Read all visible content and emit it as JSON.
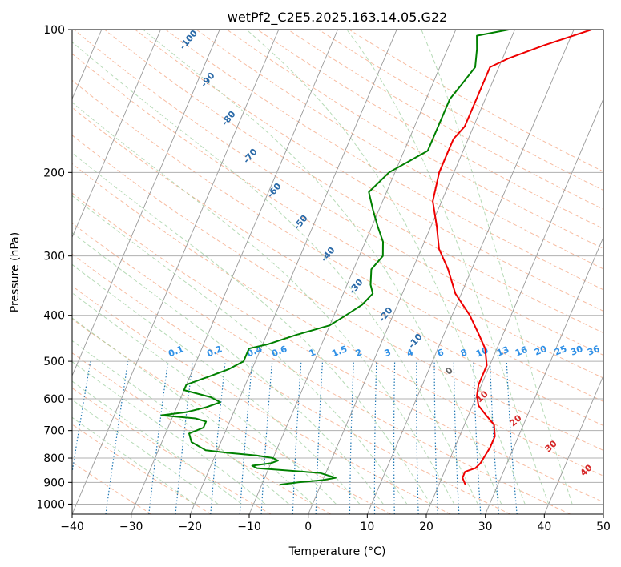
{
  "chart_data": {
    "type": "line",
    "title": "wetPf2_C2E5.2025.163.14.05.G22",
    "xlabel": "Temperature (°C)",
    "ylabel": "Pressure (hPa)",
    "xlim": [
      -40,
      50
    ],
    "ylim": [
      1050,
      100
    ],
    "y_scale": "log",
    "grid": true,
    "x_ticks": [
      -40,
      -30,
      -20,
      -10,
      0,
      10,
      20,
      30,
      40,
      50
    ],
    "y_ticks": [
      100,
      200,
      300,
      400,
      500,
      600,
      700,
      800,
      900,
      1000
    ],
    "dry_adiabat_labels": [
      "-100",
      "-90",
      "-80",
      "-70",
      "-60",
      "-50",
      "-40",
      "-30",
      "-20",
      "-10"
    ],
    "mixing_ratio_labels": [
      "0.1",
      "0.2",
      "0.4",
      "0.6",
      "1",
      "1.5",
      "2",
      "3",
      "4",
      "6",
      "8",
      "10",
      "13",
      "16",
      "20",
      "25",
      "30",
      "36"
    ],
    "moist_adiabat_labels": [
      "0",
      "10",
      "20",
      "30",
      "40"
    ],
    "colors": {
      "temperature": "#ee0000",
      "dewpoint": "#008000",
      "isotherm": "#999999",
      "dry_adiabat": "#f4a582",
      "moist_adiabat": "#99cc99",
      "mixing_ratio": "#1f77b4"
    },
    "series": [
      {
        "name": "Temperature",
        "pressure": [
          910,
          880,
          855,
          840,
          820,
          760,
          720,
          680,
          650,
          620,
          590,
          560,
          530,
          510,
          470,
          440,
          400,
          360,
          320,
          290,
          260,
          230,
          200,
          180,
          170,
          160,
          140,
          120,
          115,
          108,
          100
        ],
        "values": [
          24.5,
          23.5,
          23.5,
          25,
          25.5,
          26,
          26,
          25,
          23,
          21,
          20,
          19.5,
          19.5,
          19.5,
          18,
          16,
          13,
          9,
          6,
          3,
          1,
          -1.5,
          -2.5,
          -2.5,
          -2.5,
          -1.5,
          -1.5,
          -1.5,
          1,
          6,
          13
        ]
      },
      {
        "name": "Dewpoint",
        "pressure": [
          910,
          900,
          890,
          880,
          860,
          840,
          830,
          820,
          810,
          800,
          790,
          780,
          770,
          740,
          710,
          690,
          670,
          660,
          650,
          640,
          625,
          610,
          595,
          575,
          560,
          540,
          520,
          500,
          480,
          470,
          460,
          440,
          420,
          400,
          380,
          360,
          345,
          320,
          300,
          280,
          260,
          240,
          220,
          200,
          180,
          160,
          140,
          130,
          120,
          110,
          103,
          100
        ],
        "values": [
          -7,
          -4,
          0,
          2,
          -1,
          -12,
          -13,
          -10,
          -9,
          -10,
          -13,
          -18,
          -22,
          -25,
          -26,
          -24,
          -24,
          -26,
          -32,
          -28,
          -25,
          -23,
          -25,
          -30,
          -30,
          -27,
          -24,
          -22,
          -22,
          -22,
          -19,
          -15,
          -10,
          -8,
          -6,
          -5,
          -6,
          -7,
          -6,
          -7,
          -9,
          -11,
          -13,
          -11,
          -6,
          -6,
          -6,
          -5,
          -4,
          -5,
          -6,
          -1
        ]
      }
    ]
  }
}
